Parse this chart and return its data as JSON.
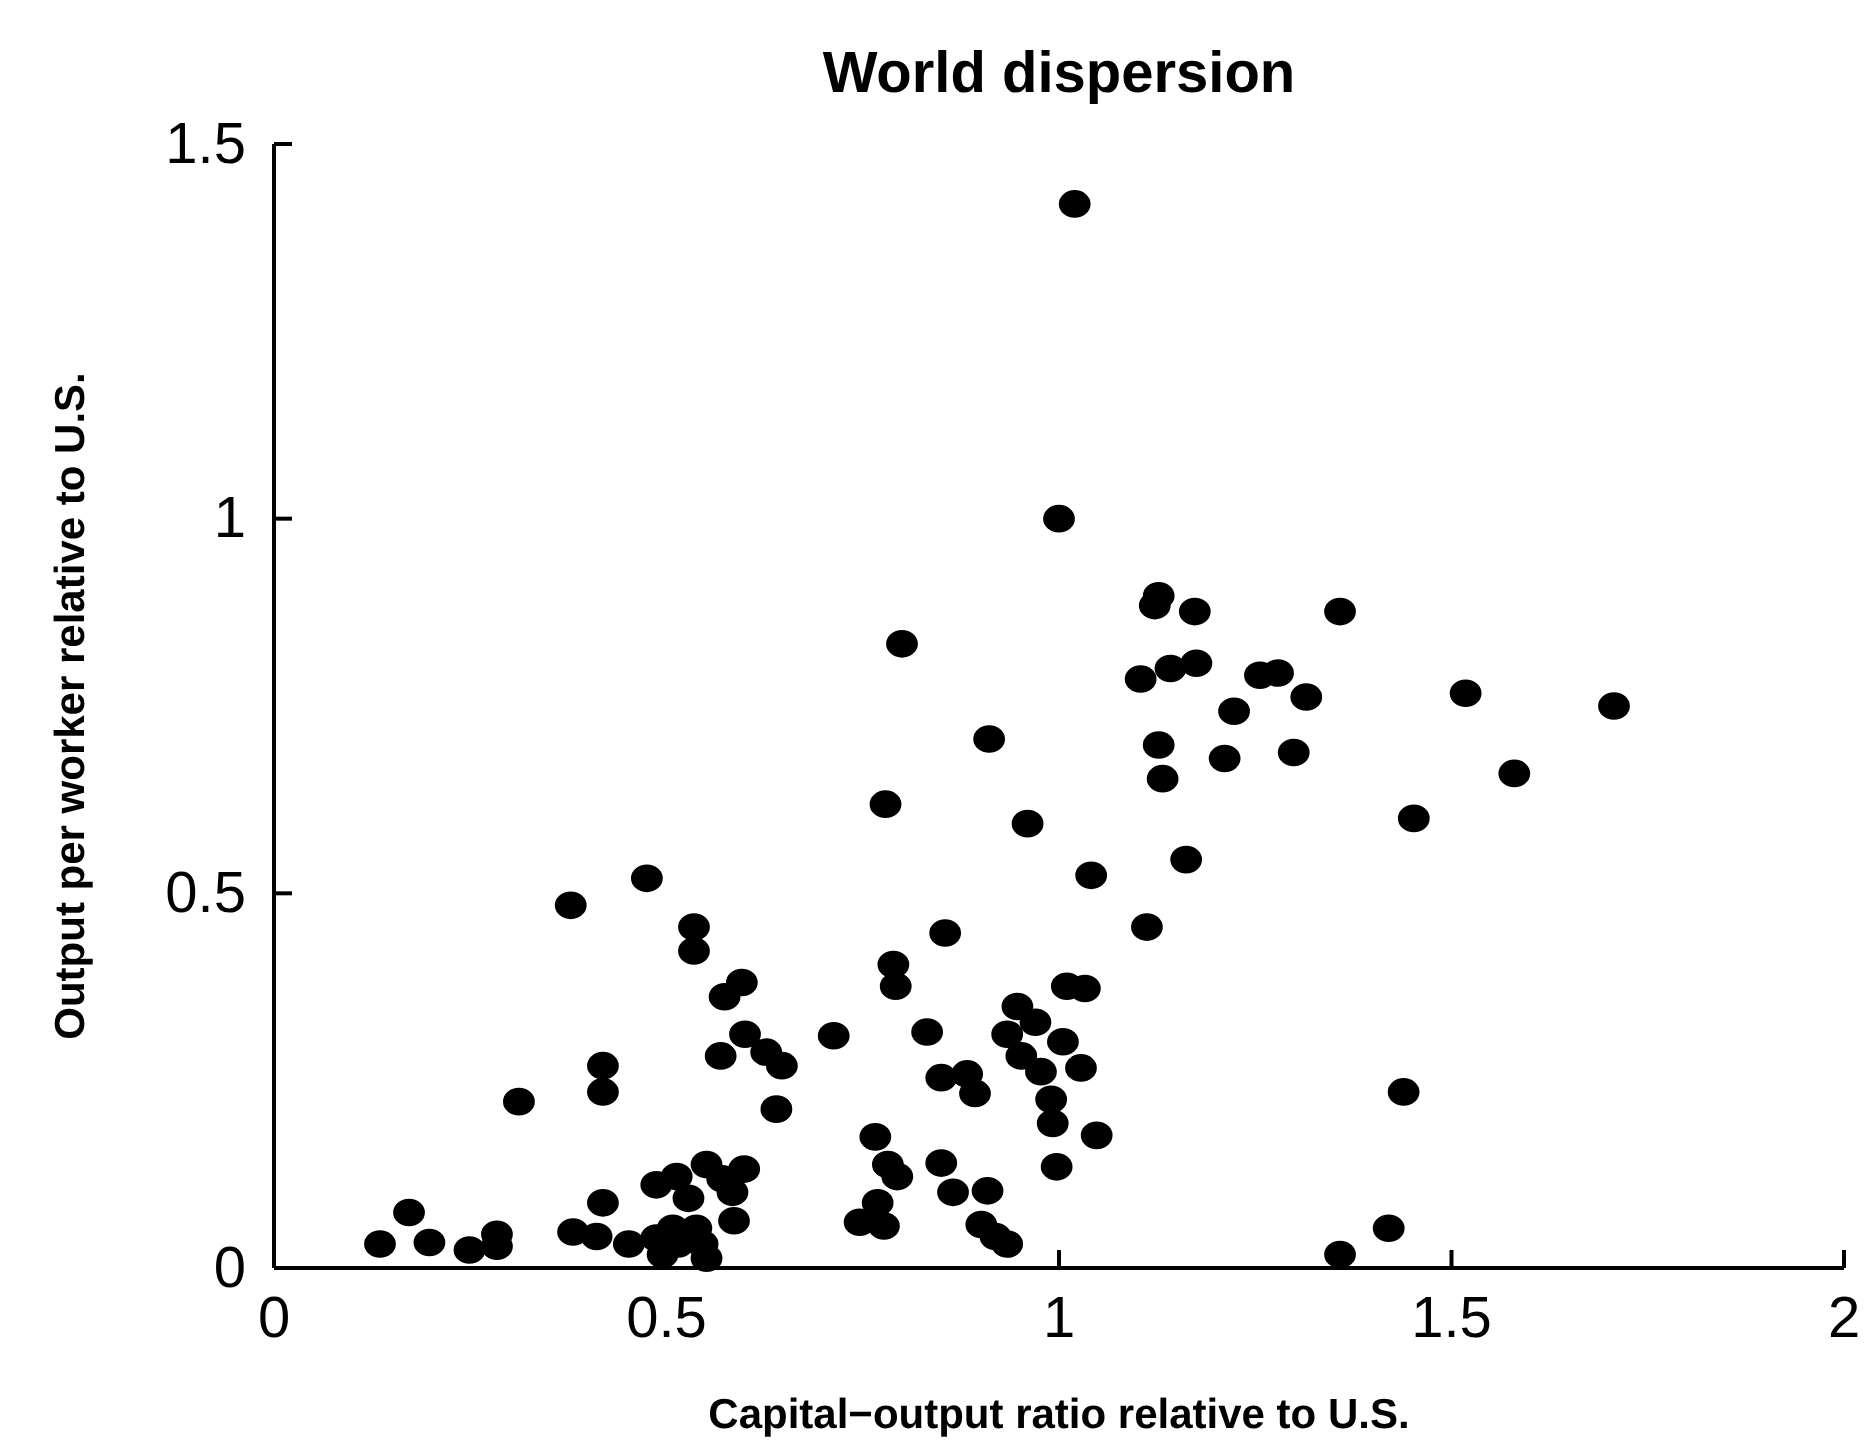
{
  "chart_data": {
    "type": "scatter",
    "title": "World dispersion",
    "xlabel": "Capital−output ratio relative to U.S.",
    "ylabel": "Output per worker relative to U.S.",
    "xlim": [
      0,
      2
    ],
    "ylim": [
      0,
      1.5
    ],
    "xticks": [
      0,
      0.5,
      1,
      1.5,
      2
    ],
    "yticks": [
      0,
      0.5,
      1,
      1.5
    ],
    "grid": false,
    "marker": "circle",
    "series": [
      {
        "color": "#000000",
        "x": [
          1.02,
          1.0,
          1.358,
          1.518,
          1.707,
          1.58,
          1.452,
          1.439,
          1.42,
          1.358,
          0.475,
          0.378,
          0.535,
          0.535,
          0.596,
          0.574,
          0.6,
          0.569,
          0.627,
          0.647,
          0.419,
          0.419,
          0.312,
          0.64,
          0.172,
          0.135,
          0.198,
          0.249,
          0.284,
          0.284,
          0.419,
          0.381,
          0.411,
          0.452,
          0.487,
          0.513,
          0.528,
          0.551,
          0.571,
          0.599,
          0.584,
          0.586,
          0.487,
          0.508,
          0.515,
          0.538,
          0.546,
          0.551,
          0.495,
          0.8,
          0.911,
          0.779,
          0.96,
          1.041,
          1.162,
          1.112,
          0.855,
          0.789,
          0.792,
          0.713,
          0.832,
          1.01,
          1.033,
          0.947,
          0.97,
          0.934,
          1.005,
          0.952,
          0.977,
          1.028,
          0.85,
          0.883,
          0.893,
          0.99,
          0.992,
          1.048,
          0.997,
          0.766,
          0.782,
          0.794,
          0.85,
          0.865,
          0.909,
          0.769,
          0.746,
          0.777,
          0.901,
          0.919,
          0.934,
          1.104,
          1.142,
          1.175,
          1.256,
          1.279,
          1.315,
          1.223,
          1.127,
          1.132,
          1.211,
          1.299,
          1.122,
          1.173,
          1.127
        ],
        "values": [
          1.42,
          1.0,
          0.876,
          0.767,
          0.75,
          0.66,
          0.6,
          0.235,
          0.053,
          0.018,
          0.52,
          0.484,
          0.455,
          0.423,
          0.381,
          0.362,
          0.312,
          0.283,
          0.288,
          0.27,
          0.27,
          0.235,
          0.222,
          0.212,
          0.074,
          0.032,
          0.034,
          0.024,
          0.045,
          0.029,
          0.087,
          0.048,
          0.042,
          0.032,
          0.111,
          0.122,
          0.093,
          0.138,
          0.119,
          0.132,
          0.101,
          0.063,
          0.04,
          0.053,
          0.032,
          0.053,
          0.032,
          0.013,
          0.018,
          0.833,
          0.706,
          0.619,
          0.593,
          0.524,
          0.545,
          0.455,
          0.447,
          0.405,
          0.376,
          0.31,
          0.315,
          0.376,
          0.373,
          0.349,
          0.328,
          0.312,
          0.302,
          0.283,
          0.262,
          0.267,
          0.254,
          0.259,
          0.233,
          0.225,
          0.193,
          0.177,
          0.135,
          0.175,
          0.138,
          0.122,
          0.14,
          0.101,
          0.103,
          0.087,
          0.061,
          0.056,
          0.058,
          0.042,
          0.032,
          0.786,
          0.8,
          0.807,
          0.791,
          0.794,
          0.762,
          0.743,
          0.698,
          0.653,
          0.68,
          0.688,
          0.884,
          0.876,
          0.897
        ]
      }
    ]
  }
}
